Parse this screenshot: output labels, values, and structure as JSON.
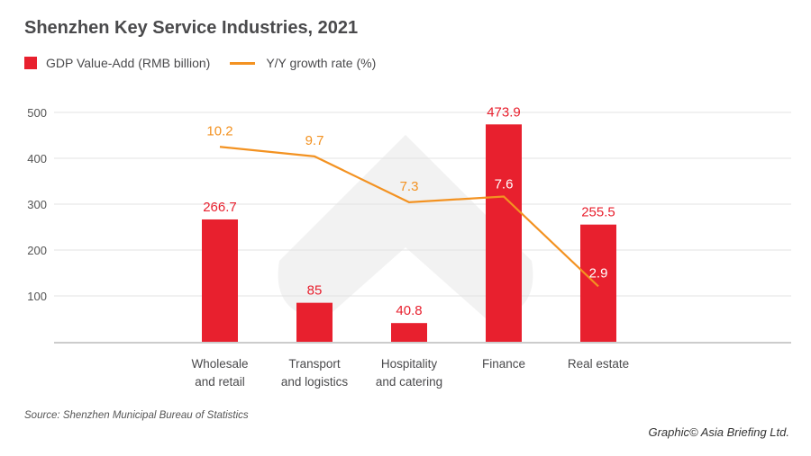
{
  "chart_data": {
    "type": "bar",
    "title": "Shenzhen Key Service Industries, 2021",
    "categories": [
      "Wholesale\nand retail",
      "Transport\nand logistics",
      "Hospitality\nand catering",
      "Finance",
      "Real estate"
    ],
    "series": [
      {
        "name": "GDP Value-Add (RMB billion)",
        "type": "bar",
        "values": [
          266.7,
          85,
          40.8,
          473.9,
          255.5
        ],
        "labels": [
          "266.7",
          "85",
          "40.8",
          "473.9",
          "255.5"
        ],
        "color": "#e8202e"
      },
      {
        "name": "Y/Y growth rate (%)",
        "type": "line",
        "axis": "secondary",
        "values": [
          10.2,
          9.7,
          7.3,
          7.6,
          2.9
        ],
        "labels": [
          "10.2",
          "9.7",
          "7.3",
          "7.6",
          "2.9"
        ],
        "color": "#f39221"
      }
    ],
    "ylim": [
      0,
      500
    ],
    "yticks": [
      "100",
      "200",
      "300",
      "400",
      "500"
    ],
    "y2lim": [
      0,
      12
    ],
    "grid": true,
    "legend": "top-left"
  },
  "source": "Source: Shenzhen Municipal Bureau of Statistics",
  "credit": "Graphic© Asia Briefing Ltd."
}
